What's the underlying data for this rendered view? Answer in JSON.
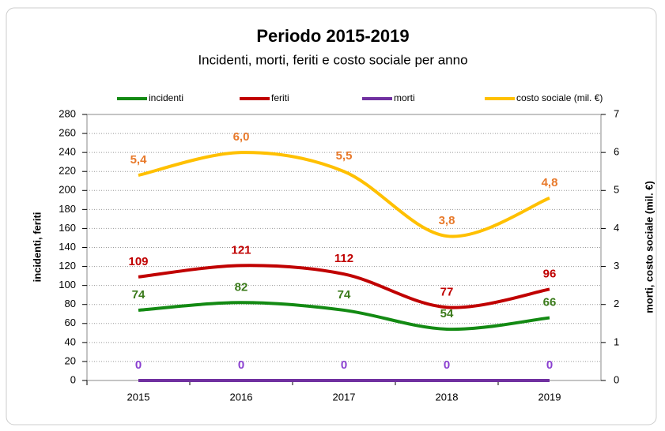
{
  "chart_data": {
    "type": "line",
    "title": "Periodo 2015-2019",
    "subtitle": "Incidenti, morti, feriti e costo sociale per anno",
    "ylabel": "incidenti, feriti",
    "y2label": "morti, costo sociale  (mil. €)",
    "categories": [
      "2015",
      "2016",
      "2017",
      "2018",
      "2019"
    ],
    "series": [
      {
        "name": "incidenti",
        "color": "#138a13",
        "label_color": "#3a7a1a",
        "values": [
          74,
          82,
          74,
          54,
          66
        ]
      },
      {
        "name": "feriti",
        "color": "#c00000",
        "label_color": "#c00000",
        "values": [
          109,
          121,
          112,
          77,
          96
        ]
      },
      {
        "name": "morti",
        "color": "#7030a0",
        "label_color": "#8a3fd0",
        "axis": "y2",
        "values": [
          0,
          0,
          0,
          0,
          0
        ]
      },
      {
        "name": "costo sociale  (mil. €)",
        "color": "#ffc000",
        "label_color": "#e8792a",
        "axis": "y2",
        "values": [
          5.4,
          6.0,
          5.5,
          3.8,
          4.8
        ],
        "value_labels": [
          "5,4",
          "6,0",
          "5,5",
          "3,8",
          "4,8"
        ]
      }
    ],
    "ylim": [
      0,
      280
    ],
    "yticks": [
      0,
      20,
      40,
      60,
      80,
      100,
      120,
      140,
      160,
      180,
      200,
      220,
      240,
      260,
      280
    ],
    "y2lim": [
      0,
      7
    ],
    "y2ticks": [
      0,
      1,
      2,
      3,
      4,
      5,
      6,
      7
    ],
    "grid": true,
    "smooth": true
  }
}
